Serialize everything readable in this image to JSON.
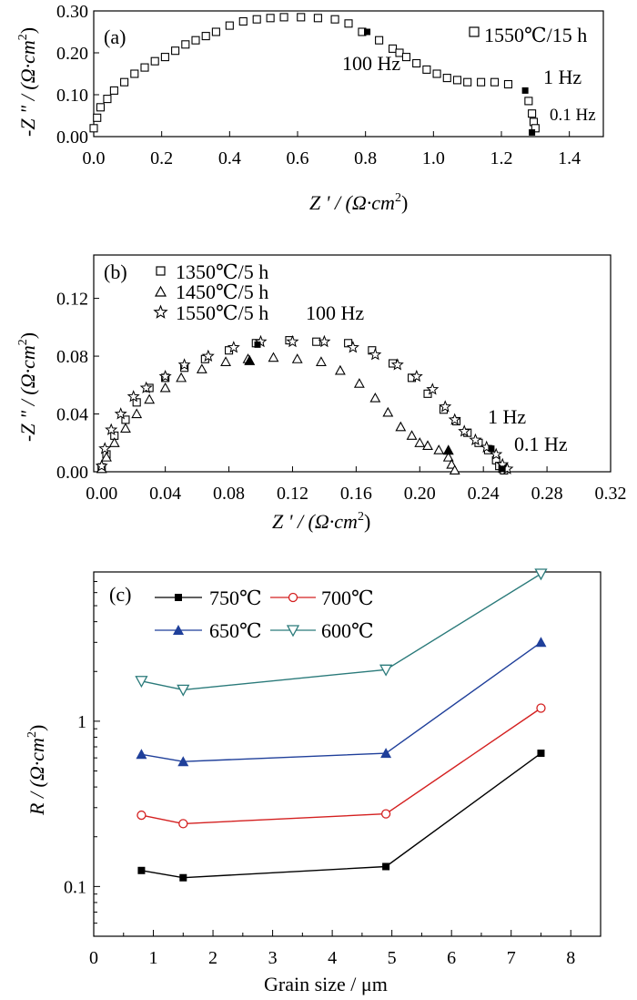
{
  "chart_data": [
    {
      "panel_label": "(a)",
      "type": "scatter",
      "xlabel_prefix": "Z ' / (Ω·cm",
      "ylabel_prefix": "-Z \" / (Ω·cm",
      "unit_superscript": "2",
      "xlim": [
        0,
        1.5
      ],
      "ylim": [
        0,
        0.3
      ],
      "x_ticks": [
        "0.0",
        "0.2",
        "0.4",
        "0.6",
        "0.8",
        "1.0",
        "1.2",
        "1.4"
      ],
      "y_ticks": [
        "0.00",
        "0.10",
        "0.20",
        "0.30"
      ],
      "series": [
        {
          "name": "1550℃/15 h",
          "marker": "square-open",
          "x": [
            0.0,
            0.01,
            0.02,
            0.04,
            0.06,
            0.09,
            0.12,
            0.15,
            0.18,
            0.21,
            0.24,
            0.27,
            0.3,
            0.33,
            0.36,
            0.4,
            0.44,
            0.48,
            0.52,
            0.56,
            0.61,
            0.66,
            0.71,
            0.75,
            0.79,
            0.84,
            0.88,
            0.9,
            0.92,
            0.95,
            0.98,
            1.01,
            1.04,
            1.07,
            1.1,
            1.14,
            1.18,
            1.22,
            1.28,
            1.29,
            1.295,
            1.3
          ],
          "y": [
            0.02,
            0.045,
            0.07,
            0.09,
            0.11,
            0.13,
            0.15,
            0.165,
            0.18,
            0.19,
            0.205,
            0.22,
            0.23,
            0.24,
            0.25,
            0.265,
            0.275,
            0.28,
            0.283,
            0.285,
            0.285,
            0.283,
            0.28,
            0.27,
            0.25,
            0.23,
            0.21,
            0.2,
            0.19,
            0.175,
            0.16,
            0.15,
            0.14,
            0.135,
            0.13,
            0.13,
            0.13,
            0.125,
            0.085,
            0.055,
            0.035,
            0.02
          ]
        }
      ],
      "markers": [
        {
          "x": 0.805,
          "y": 0.25,
          "label": "100 Hz"
        },
        {
          "x": 1.27,
          "y": 0.11,
          "label": "1 Hz"
        },
        {
          "x": 1.29,
          "y": 0.01,
          "label": "0.1 Hz"
        }
      ]
    },
    {
      "panel_label": "(b)",
      "type": "scatter",
      "xlabel_prefix": "Z ' / (Ω·cm",
      "ylabel_prefix": "-Z \" / (Ω·cm",
      "unit_superscript": "2",
      "xlim": [
        -0.005,
        0.32
      ],
      "ylim": [
        0,
        0.15
      ],
      "x_ticks": [
        "0.00",
        "0.04",
        "0.08",
        "0.12",
        "0.16",
        "0.20",
        "0.24",
        "0.28",
        "0.32"
      ],
      "y_ticks": [
        "0.00",
        "0.04",
        "0.08",
        "0.12"
      ],
      "series": [
        {
          "name": "1350℃/5 h",
          "marker": "square-open",
          "x": [
            0.0,
            0.003,
            0.008,
            0.015,
            0.022,
            0.03,
            0.04,
            0.052,
            0.065,
            0.08,
            0.097,
            0.118,
            0.135,
            0.155,
            0.17,
            0.183,
            0.195,
            0.205,
            0.215,
            0.223,
            0.23,
            0.237,
            0.243,
            0.248,
            0.25,
            0.252,
            0.253
          ],
          "y": [
            0.003,
            0.012,
            0.025,
            0.036,
            0.048,
            0.058,
            0.065,
            0.072,
            0.078,
            0.084,
            0.089,
            0.091,
            0.09,
            0.089,
            0.084,
            0.075,
            0.065,
            0.054,
            0.043,
            0.035,
            0.027,
            0.02,
            0.015,
            0.008,
            0.004,
            0.002,
            0.001
          ]
        },
        {
          "name": "1450℃/5 h",
          "marker": "triangle-open",
          "x": [
            0.0,
            0.003,
            0.008,
            0.015,
            0.022,
            0.03,
            0.04,
            0.05,
            0.063,
            0.078,
            0.092,
            0.108,
            0.123,
            0.138,
            0.15,
            0.162,
            0.172,
            0.18,
            0.188,
            0.195,
            0.2,
            0.205,
            0.212,
            0.218,
            0.22,
            0.222
          ],
          "y": [
            0.002,
            0.01,
            0.02,
            0.03,
            0.04,
            0.05,
            0.058,
            0.065,
            0.071,
            0.076,
            0.078,
            0.079,
            0.078,
            0.076,
            0.07,
            0.061,
            0.051,
            0.041,
            0.031,
            0.025,
            0.02,
            0.018,
            0.015,
            0.01,
            0.005,
            0.001
          ]
        },
        {
          "name": "1550℃/5 h",
          "marker": "star-open",
          "x": [
            0.0,
            0.002,
            0.006,
            0.012,
            0.02,
            0.028,
            0.04,
            0.052,
            0.067,
            0.083,
            0.1,
            0.12,
            0.14,
            0.158,
            0.172,
            0.186,
            0.198,
            0.208,
            0.216,
            0.222,
            0.228,
            0.235,
            0.242,
            0.248,
            0.252,
            0.255
          ],
          "y": [
            0.004,
            0.016,
            0.029,
            0.04,
            0.052,
            0.058,
            0.066,
            0.074,
            0.08,
            0.086,
            0.09,
            0.09,
            0.09,
            0.086,
            0.081,
            0.074,
            0.066,
            0.057,
            0.045,
            0.036,
            0.028,
            0.022,
            0.017,
            0.012,
            0.005,
            0.002
          ]
        }
      ],
      "markers": [
        {
          "x": 0.098,
          "y": 0.088,
          "label": "100 Hz"
        },
        {
          "x": 0.093,
          "y": 0.077,
          "label": ""
        },
        {
          "x": 0.218,
          "y": 0.015,
          "label": ""
        },
        {
          "x": 0.245,
          "y": 0.016,
          "label": "1 Hz"
        },
        {
          "x": 0.252,
          "y": 0.002,
          "label": "0.1 Hz"
        }
      ]
    },
    {
      "panel_label": "(c)",
      "type": "line",
      "xlabel": "Grain size / μm",
      "ylabel_prefix": "R / (Ω·cm",
      "unit_superscript": "2",
      "yscale": "log",
      "xlim": [
        0,
        8.5
      ],
      "ylim": [
        0.05,
        8
      ],
      "x_ticks": [
        "0",
        "1",
        "2",
        "3",
        "4",
        "5",
        "6",
        "7",
        "8"
      ],
      "y_ticks": [
        "0.1",
        "1"
      ],
      "x": [
        0.8,
        1.5,
        4.9,
        7.5
      ],
      "series": [
        {
          "name": "750℃",
          "color": "#000000",
          "marker": "square-filled",
          "values": [
            0.125,
            0.113,
            0.132,
            0.64
          ]
        },
        {
          "name": "700℃",
          "color": "#d42020",
          "marker": "circle-open",
          "values": [
            0.27,
            0.24,
            0.275,
            1.2
          ]
        },
        {
          "name": "650℃",
          "color": "#1f3f9a",
          "marker": "triangle-filled",
          "values": [
            0.63,
            0.57,
            0.64,
            3.0
          ]
        },
        {
          "name": "600℃",
          "color": "#2a7a7a",
          "marker": "triangle-down-open",
          "values": [
            1.75,
            1.55,
            2.05,
            7.8
          ]
        }
      ]
    }
  ]
}
